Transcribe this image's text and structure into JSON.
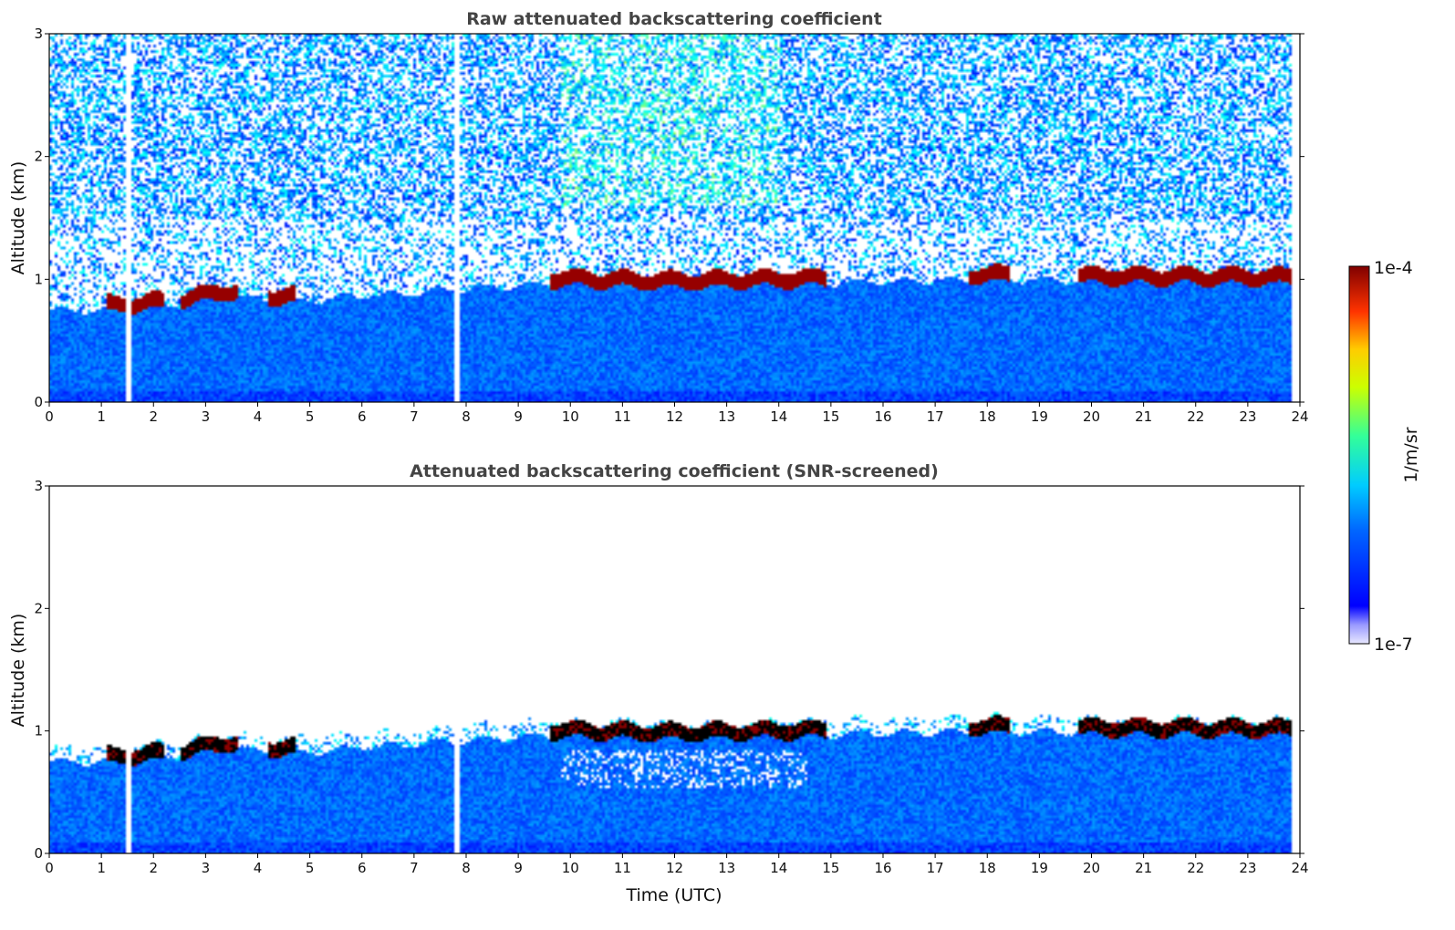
{
  "chart_data": [
    {
      "type": "heatmap",
      "title": "Raw attenuated backscattering coefficient",
      "xlabel": "",
      "ylabel": "Altitude (km)",
      "xlim": [
        0,
        24
      ],
      "ylim": [
        0,
        3
      ],
      "xticks": [
        "0",
        "1",
        "2",
        "3",
        "4",
        "5",
        "6",
        "7",
        "8",
        "9",
        "10",
        "11",
        "12",
        "13",
        "14",
        "15",
        "16",
        "17",
        "18",
        "19",
        "20",
        "21",
        "22",
        "23",
        "24"
      ],
      "yticks": [
        "0",
        "1",
        "2",
        "3"
      ],
      "data_gaps_utc": [
        1.5,
        7.8
      ],
      "layer_top_km": [
        {
          "x": 1.1,
          "y": 0.8
        },
        {
          "x": 1.8,
          "y": 0.82
        },
        {
          "x": 2.6,
          "y": 0.85
        },
        {
          "x": 3.3,
          "y": 0.92
        },
        {
          "x": 4.5,
          "y": 0.87
        },
        {
          "x": 9.6,
          "y": 1.02
        },
        {
          "x": 12.0,
          "y": 1.0
        },
        {
          "x": 14.8,
          "y": 1.02
        },
        {
          "x": 17.8,
          "y": 1.05
        },
        {
          "x": 19.8,
          "y": 1.04
        },
        {
          "x": 23.8,
          "y": 1.03
        }
      ]
    },
    {
      "type": "heatmap",
      "title": "Attenuated backscattering coefficient (SNR-screened)",
      "xlabel": "Time (UTC)",
      "ylabel": "Altitude (km)",
      "xlim": [
        0,
        24
      ],
      "ylim": [
        0,
        3
      ],
      "xticks": [
        "0",
        "1",
        "2",
        "3",
        "4",
        "5",
        "6",
        "7",
        "8",
        "9",
        "10",
        "11",
        "12",
        "13",
        "14",
        "15",
        "16",
        "17",
        "18",
        "19",
        "20",
        "21",
        "22",
        "23",
        "24"
      ],
      "yticks": [
        "0",
        "1",
        "2",
        "3"
      ],
      "data_gaps_utc": [
        1.5,
        7.8
      ]
    }
  ],
  "colorbar": {
    "label": "1/m/sr",
    "max_label": "1e-4",
    "min_label": "1e-7",
    "scale": "log",
    "range": [
      1e-07,
      0.0001
    ],
    "colormap": "jet"
  }
}
